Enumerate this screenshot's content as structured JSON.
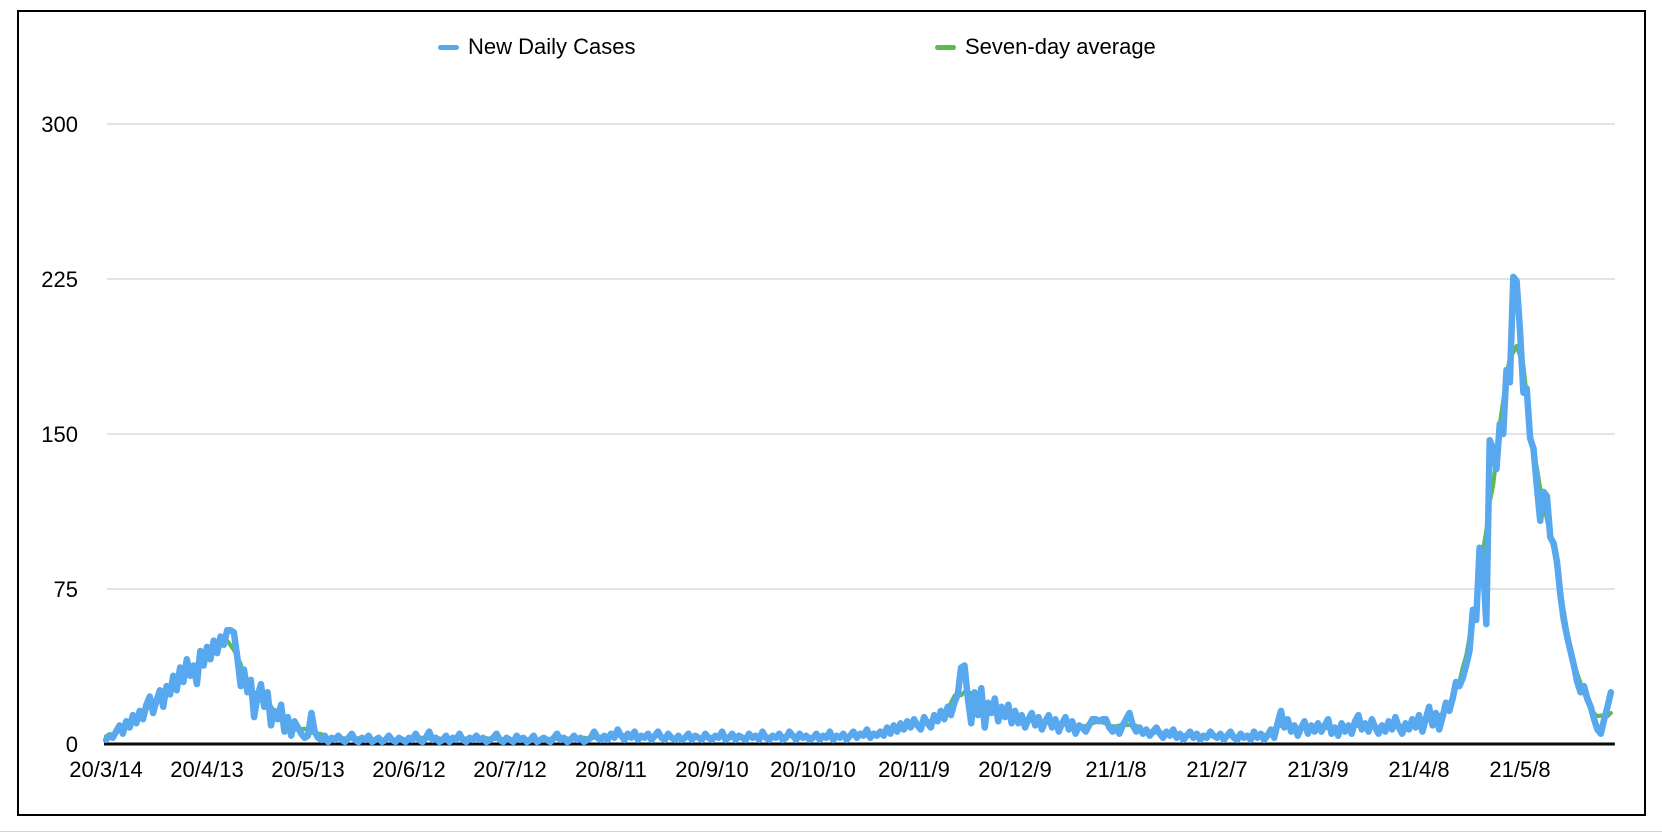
{
  "legend": [
    {
      "label": "New Daily Cases",
      "color": "#58A8EF"
    },
    {
      "label": "Seven-day average",
      "color": "#5CBB4A"
    }
  ],
  "colors": {
    "daily_line": "#58A8EF",
    "average_line": "#5CBB4A",
    "gridline": "#DADADA",
    "axis_line": "#0A0A0A",
    "frame_border": "#000000",
    "label_text": "#000000"
  },
  "chart_data": {
    "type": "line",
    "title": "",
    "xlabel": "",
    "ylabel": "",
    "grid": true,
    "legend_position": "top",
    "ylim": [
      0,
      310
    ],
    "y_tick_labels": [
      "0",
      "75",
      "150",
      "225",
      "300"
    ],
    "y_tick_values": [
      0,
      75,
      150,
      225,
      300
    ],
    "x_tick_labels": [
      "20/3/14",
      "20/4/13",
      "20/5/13",
      "20/6/12",
      "20/7/12",
      "20/8/11",
      "20/9/10",
      "20/10/10",
      "20/11/9",
      "20/12/9",
      "21/1/8",
      "21/2/7",
      "21/3/9",
      "21/4/8",
      "21/5/8"
    ],
    "x_tick_day_index": [
      0,
      30,
      60,
      90,
      120,
      150,
      180,
      210,
      240,
      270,
      300,
      330,
      360,
      390,
      420
    ],
    "x_unit": "one point per day; index 0 = 20/3/14; ticks every 30 days",
    "series": [
      {
        "name": "New Daily Cases",
        "color": "#58A8EF",
        "values": [
          2,
          4,
          3,
          6,
          9,
          5,
          11,
          8,
          14,
          10,
          16,
          12,
          19,
          23,
          15,
          21,
          26,
          18,
          28,
          24,
          33,
          26,
          37,
          30,
          41,
          33,
          38,
          29,
          45,
          38,
          47,
          41,
          50,
          44,
          52,
          48,
          55,
          55,
          54,
          42,
          28,
          36,
          25,
          31,
          13,
          23,
          29,
          18,
          25,
          9,
          16,
          12,
          19,
          6,
          13,
          4,
          11,
          8,
          5,
          3,
          4,
          15,
          6,
          3,
          2,
          4,
          1,
          3,
          2,
          4,
          2,
          1,
          3,
          5,
          2,
          1,
          3,
          2,
          4,
          1,
          2,
          3,
          1,
          2,
          4,
          2,
          1,
          3,
          2,
          1,
          3,
          2,
          5,
          2,
          1,
          3,
          6,
          2,
          3,
          1,
          2,
          4,
          1,
          3,
          2,
          5,
          2,
          1,
          3,
          2,
          4,
          2,
          3,
          1,
          2,
          3,
          5,
          2,
          1,
          3,
          2,
          1,
          4,
          2,
          3,
          1,
          2,
          4,
          1,
          2,
          3,
          2,
          1,
          3,
          5,
          2,
          3,
          1,
          2,
          4,
          2,
          3,
          1,
          2,
          3,
          6,
          3,
          2,
          4,
          2,
          5,
          3,
          7,
          4,
          2,
          5,
          3,
          6,
          2,
          4,
          3,
          5,
          2,
          4,
          6,
          3,
          2,
          5,
          3,
          2,
          4,
          2,
          3,
          5,
          2,
          4,
          3,
          2,
          5,
          3,
          2,
          4,
          3,
          6,
          2,
          3,
          5,
          2,
          4,
          3,
          2,
          5,
          3,
          4,
          2,
          6,
          3,
          2,
          4,
          3,
          5,
          2,
          3,
          6,
          4,
          2,
          5,
          3,
          4,
          2,
          3,
          5,
          2,
          4,
          3,
          6,
          2,
          4,
          3,
          5,
          2,
          4,
          6,
          3,
          5,
          4,
          7,
          3,
          5,
          4,
          6,
          4,
          8,
          5,
          9,
          6,
          10,
          7,
          11,
          8,
          12,
          9,
          7,
          13,
          10,
          8,
          14,
          11,
          16,
          12,
          18,
          14,
          20,
          24,
          37,
          38,
          22,
          10,
          25,
          14,
          27,
          8,
          20,
          15,
          22,
          11,
          18,
          13,
          19,
          10,
          16,
          10,
          14,
          8,
          12,
          15,
          9,
          13,
          7,
          11,
          14,
          8,
          12,
          6,
          10,
          13,
          7,
          11,
          5,
          9,
          8,
          6,
          9,
          12,
          12,
          11,
          12,
          12,
          8,
          6,
          8,
          5,
          9,
          12,
          15,
          9,
          6,
          8,
          5,
          7,
          4,
          6,
          8,
          5,
          3,
          6,
          4,
          7,
          3,
          5,
          2,
          4,
          6,
          3,
          5,
          2,
          4,
          3,
          6,
          4,
          3,
          5,
          2,
          4,
          6,
          3,
          2,
          5,
          3,
          4,
          2,
          6,
          3,
          5,
          2,
          4,
          7,
          3,
          10,
          16,
          8,
          12,
          6,
          9,
          4,
          8,
          11,
          5,
          9,
          6,
          10,
          6,
          9,
          12,
          5,
          8,
          4,
          10,
          6,
          9,
          5,
          11,
          14,
          7,
          10,
          6,
          12,
          8,
          5,
          9,
          6,
          11,
          7,
          13,
          8,
          5,
          10,
          7,
          12,
          8,
          14,
          6,
          12,
          18,
          9,
          15,
          7,
          13,
          20,
          16,
          22,
          30,
          28,
          32,
          38,
          45,
          65,
          60,
          95,
          88,
          58,
          147,
          143,
          133,
          155,
          150,
          181,
          175,
          226,
          224,
          200,
          170,
          172,
          148,
          143,
          125,
          108,
          122,
          120,
          100,
          97,
          88,
          72,
          60,
          52,
          45,
          38,
          30,
          25,
          28,
          22,
          18,
          12,
          7,
          5,
          12,
          18,
          25
        ]
      },
      {
        "name": "Seven-day average",
        "color": "#5CBB4A",
        "derived": "centered 7-day moving average of New Daily Cases"
      }
    ]
  }
}
